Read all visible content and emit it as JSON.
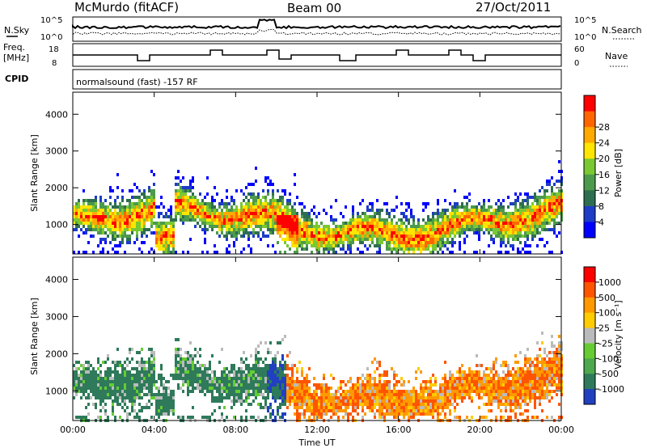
{
  "header": {
    "station": "McMurdo (fitACF)",
    "beam": "Beam 00",
    "date": "27/Oct/2011"
  },
  "strip_labels": {
    "nsky": "N.Sky",
    "nsearch": "N.Search",
    "freq_line1": "Freq.",
    "freq_line2": "[MHz]",
    "nave": "Nave",
    "cpid": "CPID",
    "left_top_tick": "10^5",
    "left_bot_tick": "10^0",
    "right_top_tick": "10^5",
    "right_bot_tick": "10^0",
    "freq_top_tick": "18",
    "freq_bot_tick": "8",
    "nave_top_tick": "60",
    "nave_bot_tick": "0"
  },
  "cpid_text": "normalsound (fast) -157 RF",
  "chart_data": [
    {
      "type": "heatmap",
      "name_key": "power",
      "ylabel": "Slant Range [km]",
      "xlabel": "",
      "x_ticks": [
        "00:00",
        "04:00",
        "08:00",
        "12:00",
        "16:00",
        "20:00",
        "00:00"
      ],
      "y_ticks": [
        "1000",
        "2000",
        "3000",
        "4000"
      ],
      "ylim": [
        200,
        4600
      ],
      "xlim_hours": [
        0,
        24
      ],
      "colorbar": {
        "label": "Power [dB]",
        "ticks": [
          "4",
          "8",
          "12",
          "16",
          "20",
          "24",
          "28"
        ],
        "colors": [
          "#0000ff",
          "#1e3cc8",
          "#2e6e50",
          "#4c9a4c",
          "#7ac832",
          "#ffe600",
          "#ffaa00",
          "#ff6600",
          "#ff0000"
        ]
      }
    },
    {
      "type": "heatmap",
      "name_key": "velocity",
      "ylabel": "Slant Range [km]",
      "xlabel": "Time UT",
      "x_ticks": [
        "00:00",
        "04:00",
        "08:00",
        "12:00",
        "16:00",
        "20:00",
        "00:00"
      ],
      "y_ticks": [
        "1000",
        "2000",
        "3000",
        "4000"
      ],
      "ylim": [
        200,
        4600
      ],
      "xlim_hours": [
        0,
        24
      ],
      "colorbar": {
        "label": "Velocity [m s⁻¹]",
        "ticks": [
          "1000",
          "500",
          "100",
          "25",
          "-25",
          "-100",
          "-500",
          "-1000"
        ],
        "colors": [
          "#2040c0",
          "#2e7a5a",
          "#4ea84e",
          "#66cc33",
          "#bbbbbb",
          "#ffcc00",
          "#ff9900",
          "#ff5500",
          "#ff0000"
        ]
      }
    }
  ]
}
